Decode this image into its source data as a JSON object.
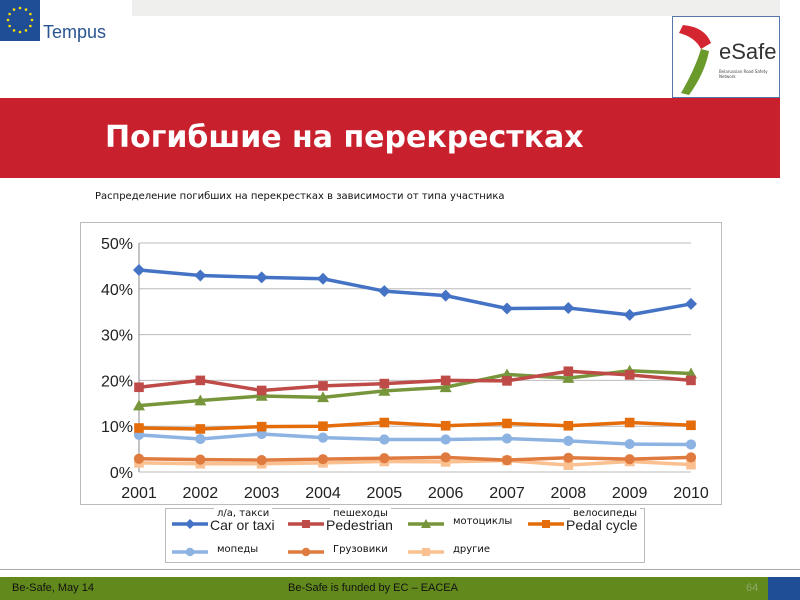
{
  "header": {
    "partner_logo": "Tempus",
    "logo": "eSafe",
    "logo_sub": "Belarussian Road Safety Network"
  },
  "title": "Погибшие на перекрестках",
  "subtitle": "Распределение погибших на перекрестках в зависимости от типа участника",
  "chart_data": {
    "type": "line",
    "x": [
      "2001",
      "2002",
      "2003",
      "2004",
      "2005",
      "2006",
      "2007",
      "2008",
      "2009",
      "2010"
    ],
    "yticks": [
      "0%",
      "10%",
      "20%",
      "30%",
      "40%",
      "50%"
    ],
    "ylim": [
      0,
      50
    ],
    "grid": true,
    "legend_placement": "bottom",
    "series": [
      {
        "name": "л/а, такси",
        "name_underlay": "Car or taxi",
        "color": "#4472c4",
        "marker": "diamond",
        "values": [
          44.1,
          42.9,
          42.5,
          42.2,
          39.5,
          38.5,
          35.7,
          35.8,
          34.3,
          36.7
        ]
      },
      {
        "name": "пешеходы",
        "name_underlay": "Pedestrian",
        "color": "#be4b48",
        "marker": "square",
        "values": [
          18.5,
          20.0,
          17.8,
          18.8,
          19.3,
          20.0,
          19.9,
          22.0,
          21.2,
          20.0
        ]
      },
      {
        "name": "мотоциклы",
        "name_underlay": "",
        "color": "#77963c",
        "marker": "triangle",
        "values": [
          14.5,
          15.6,
          16.6,
          16.3,
          17.7,
          18.5,
          21.3,
          20.5,
          22.1,
          21.5
        ]
      },
      {
        "name": "велосипеды",
        "name_underlay": "Pedal cycle",
        "color": "#e46c0a",
        "marker": "square",
        "values": [
          9.6,
          9.4,
          9.9,
          10.0,
          10.8,
          10.1,
          10.6,
          10.1,
          10.8,
          10.2
        ]
      },
      {
        "name": "мопеды",
        "name_underlay": "",
        "color": "#8db3e2",
        "marker": "circle",
        "values": [
          8.1,
          7.2,
          8.3,
          7.5,
          7.1,
          7.1,
          7.3,
          6.8,
          6.1,
          6.0
        ]
      },
      {
        "name": "Грузовики",
        "name_underlay": "",
        "color": "#e07b40",
        "marker": "circle",
        "values": [
          2.9,
          2.7,
          2.6,
          2.8,
          3.0,
          3.2,
          2.6,
          3.1,
          2.8,
          3.2
        ]
      },
      {
        "name": "другие",
        "name_underlay": "",
        "color": "#fac090",
        "marker": "square",
        "values": [
          2.0,
          1.8,
          1.8,
          2.0,
          2.3,
          2.2,
          2.5,
          1.5,
          2.3,
          1.6
        ]
      }
    ]
  },
  "footer": {
    "left": "Be-Safe, May 14",
    "center": "Be-Safe is funded by EC – EACEA",
    "page": "64"
  }
}
